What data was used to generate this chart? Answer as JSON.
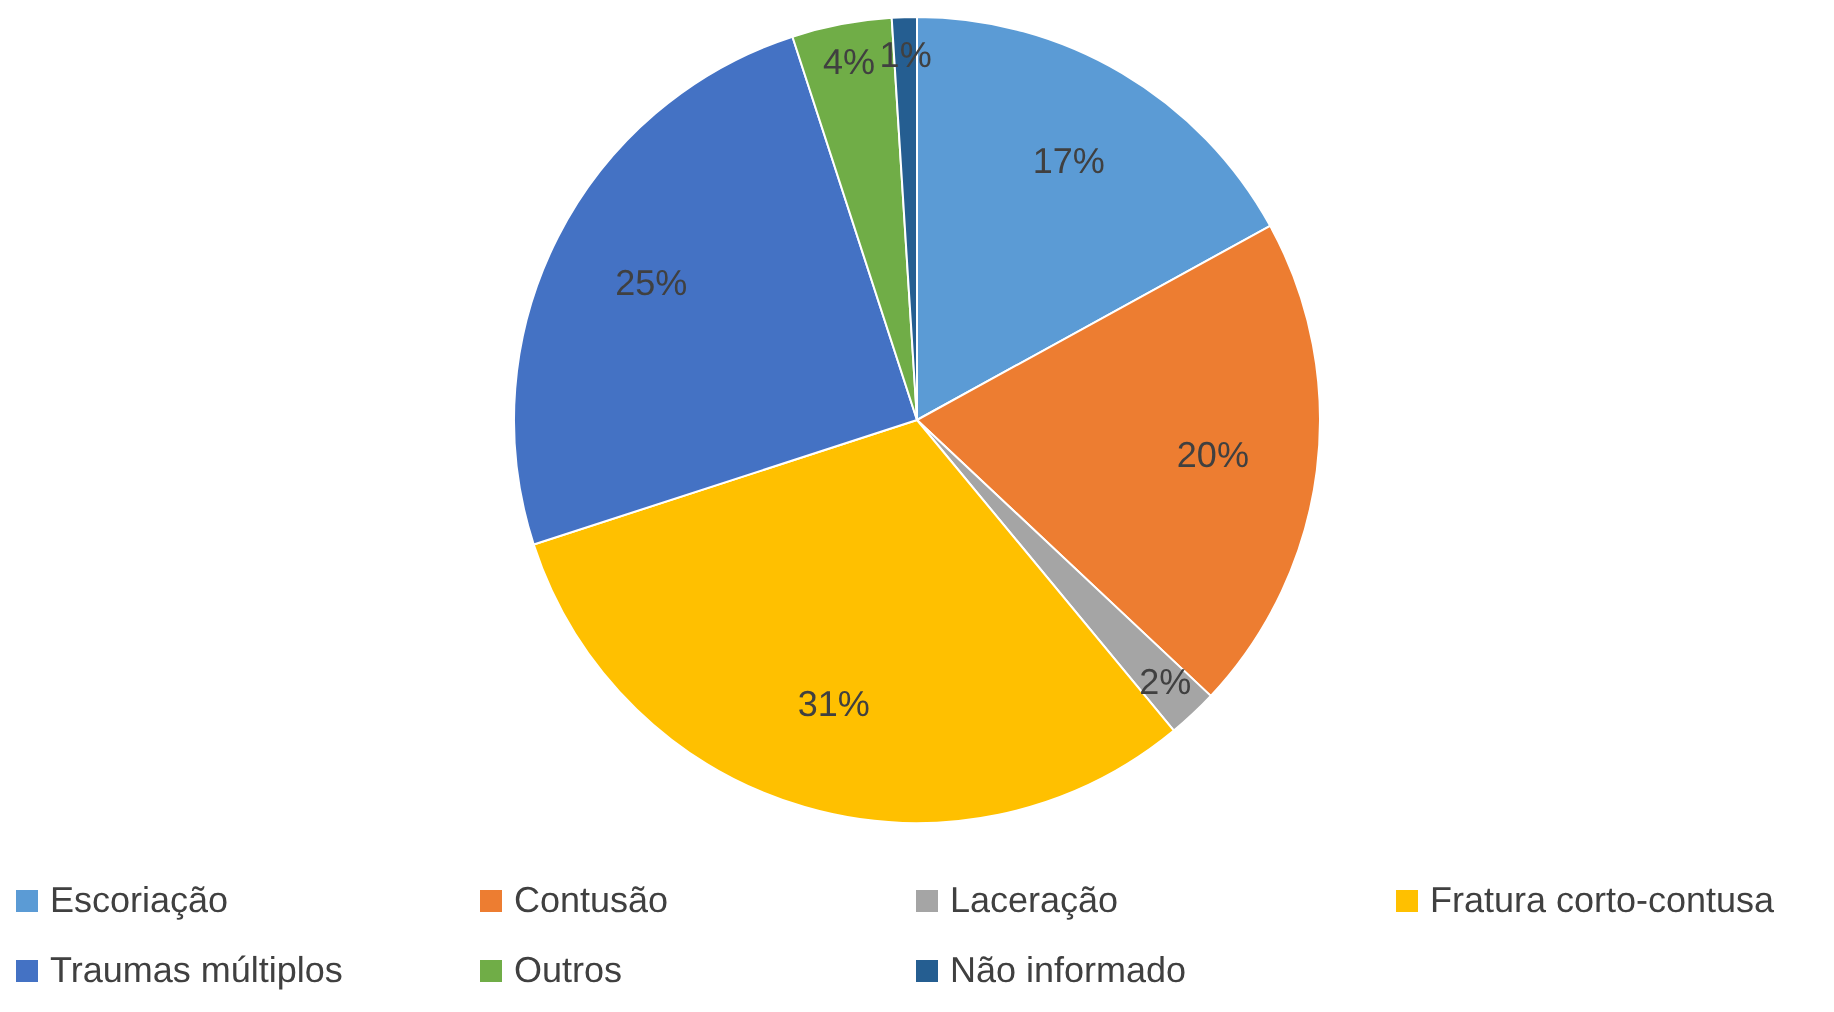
{
  "chart_data": {
    "type": "pie",
    "categories": [
      "Escoriação",
      "Contusão",
      "Laceração",
      "Fratura corto-contusa",
      "Traumas múltiplos",
      "Outros",
      "Não informado"
    ],
    "values": [
      17,
      20,
      2,
      31,
      25,
      4,
      1
    ],
    "colors": [
      "#5b9bd5",
      "#ed7d31",
      "#a5a5a5",
      "#ffc000",
      "#4472c4",
      "#70ad47",
      "#255e91"
    ],
    "value_labels": [
      "17%",
      "20%",
      "2%",
      "31%",
      "25%",
      "4%",
      "1%"
    ],
    "legend": "bottom"
  }
}
